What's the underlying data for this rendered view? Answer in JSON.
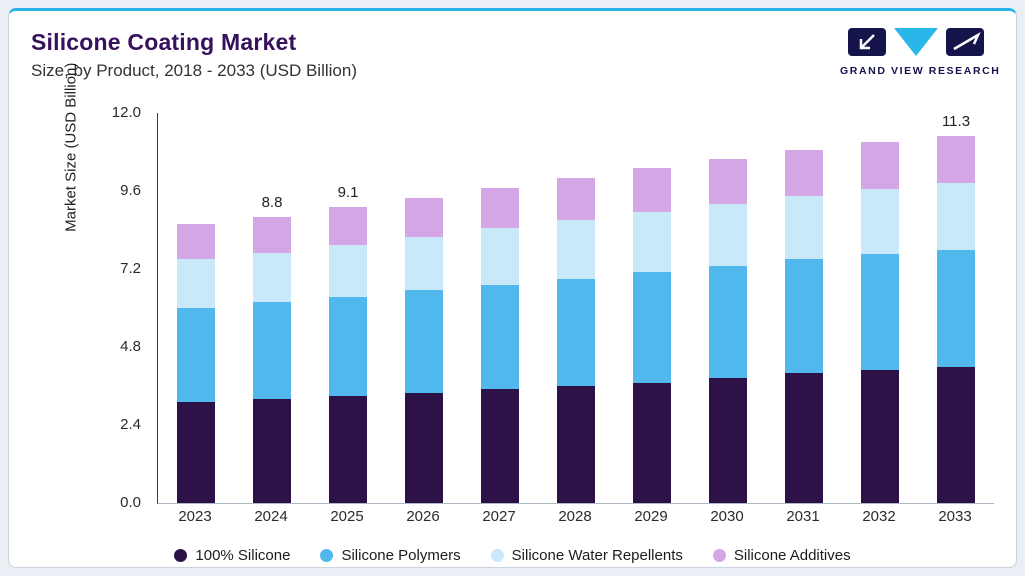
{
  "header": {
    "title": "Silicone Coating Market",
    "subtitle": "Size, by Product, 2018 - 2033 (USD Billion)",
    "logo_text": "GRAND VIEW RESEARCH"
  },
  "colors": {
    "accent_line": "#2ab2e8",
    "title": "#36115c",
    "logo_navy": "#15154c",
    "logo_cyan": "#29b7e9"
  },
  "chart_data": {
    "type": "bar",
    "stacked": true,
    "title": "Silicone Coating Market Size, by Product, 2018 - 2033 (USD Billion)",
    "xlabel": "",
    "ylabel": "Market Size (USD Billion)",
    "ylim": [
      0,
      12
    ],
    "yticks": [
      "0.0",
      "2.4",
      "4.8",
      "7.2",
      "9.6",
      "12.0"
    ],
    "grid": false,
    "legend_position": "bottom",
    "categories": [
      "2023",
      "2024",
      "2025",
      "2026",
      "2027",
      "2028",
      "2029",
      "2030",
      "2031",
      "2032",
      "2033"
    ],
    "series": [
      {
        "name": "100% Silicone",
        "color": "#2c1247",
        "values": [
          3.1,
          3.2,
          3.3,
          3.4,
          3.5,
          3.6,
          3.7,
          3.85,
          4.0,
          4.1,
          4.2
        ]
      },
      {
        "name": "Silicone Polymers",
        "color": "#51b8ed",
        "values": [
          2.9,
          3.0,
          3.05,
          3.15,
          3.2,
          3.3,
          3.4,
          3.45,
          3.5,
          3.55,
          3.6
        ]
      },
      {
        "name": "Silicone Water Repellents",
        "color": "#c9e9fa",
        "values": [
          1.5,
          1.5,
          1.6,
          1.65,
          1.75,
          1.8,
          1.85,
          1.9,
          1.95,
          2.0,
          2.05
        ]
      },
      {
        "name": "Silicone Additives",
        "color": "#d5a6e6",
        "values": [
          1.1,
          1.1,
          1.15,
          1.2,
          1.25,
          1.3,
          1.35,
          1.4,
          1.4,
          1.45,
          1.45
        ]
      }
    ],
    "totals": [
      8.6,
      8.8,
      9.1,
      9.4,
      9.7,
      10.0,
      10.3,
      10.6,
      10.85,
      11.1,
      11.3
    ],
    "value_labels": {
      "2024": "8.8",
      "2025": "9.1",
      "2033": "11.3"
    }
  }
}
